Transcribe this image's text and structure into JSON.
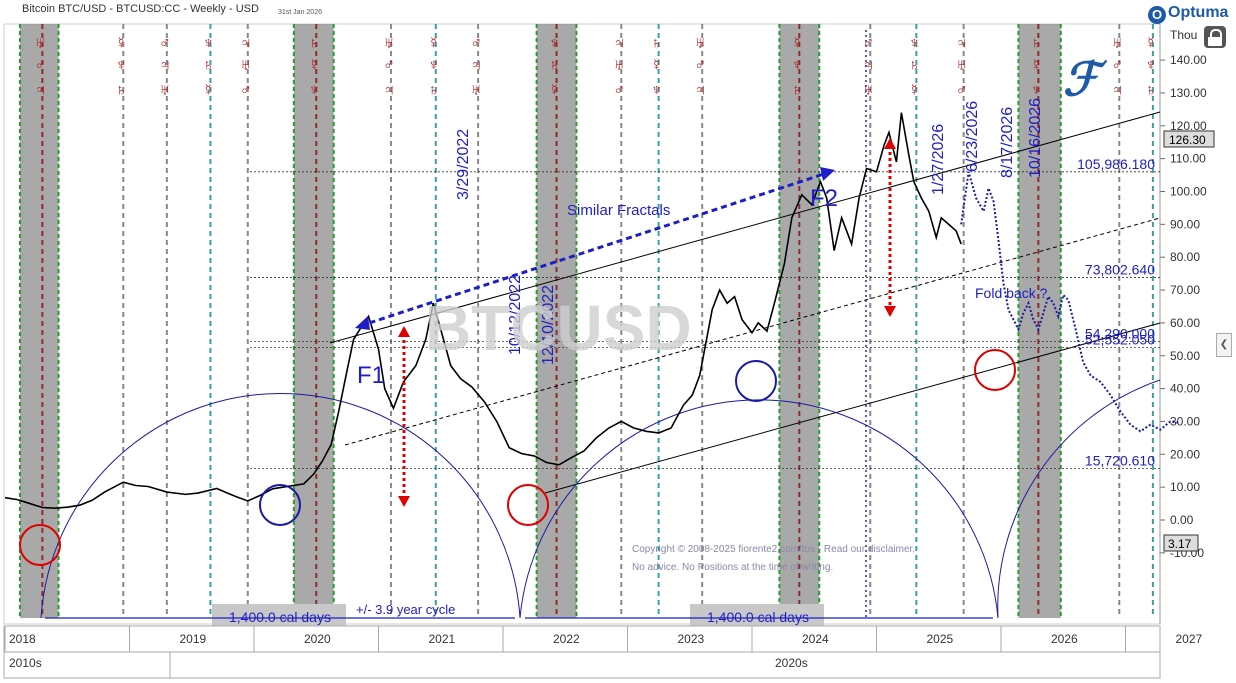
{
  "header": {
    "title": "Bitcoin BTC/USD - BTCUSD:CC - Weekly - USD",
    "date": "31st Jan 2026",
    "brand": "Optuma",
    "unit": "Thou"
  },
  "watermark": "BTCUSD",
  "copyright": [
    "Copyright © 2008-2025 fiorente2.com/tos - Read our disclaimer.",
    "No advice. No Positions at the time of writing."
  ],
  "chart_data": {
    "type": "line",
    "title": "Bitcoin BTC/USD - BTCUSD:CC - Weekly - USD",
    "ylabel": "Thou",
    "ylim": [
      -20,
      160
    ],
    "yticks": [
      "-10.00",
      "0.00",
      "10.00",
      "20.00",
      "30.00",
      "40.00",
      "50.00",
      "60.00",
      "70.00",
      "80.00",
      "90.00",
      "100.00",
      "110.00",
      "120.00",
      "130.00",
      "140.00",
      "150.00",
      "160.00"
    ],
    "year_labels": [
      "2018",
      "2019",
      "2020",
      "2021",
      "2022",
      "2023",
      "2024",
      "2025",
      "2026",
      "2027"
    ],
    "decade_labels": [
      "2010s",
      "2020s"
    ],
    "last_price": "126.30",
    "low_marker": "3.17",
    "series": [
      {
        "values": [
          [
            2018.0,
            6.8
          ],
          [
            2018.1,
            6.2
          ],
          [
            2018.2,
            5.0
          ],
          [
            2018.3,
            3.8
          ],
          [
            2018.4,
            3.6
          ],
          [
            2018.5,
            3.9
          ],
          [
            2018.6,
            4.5
          ],
          [
            2018.7,
            6.0
          ],
          [
            2018.8,
            8.5
          ],
          [
            2018.95,
            11.5
          ],
          [
            2019.05,
            10.5
          ],
          [
            2019.15,
            10.2
          ],
          [
            2019.3,
            8.5
          ],
          [
            2019.45,
            7.8
          ],
          [
            2019.55,
            8.2
          ],
          [
            2019.7,
            9.6
          ],
          [
            2019.85,
            7.2
          ],
          [
            2019.95,
            5.8
          ],
          [
            2020.05,
            7.5
          ],
          [
            2020.15,
            9.5
          ],
          [
            2020.3,
            10.4
          ],
          [
            2020.4,
            11.0
          ],
          [
            2020.48,
            14.0
          ],
          [
            2020.55,
            18.0
          ],
          [
            2020.62,
            23.0
          ],
          [
            2020.68,
            33.0
          ],
          [
            2020.75,
            46.0
          ],
          [
            2020.8,
            55.0
          ],
          [
            2020.85,
            58.0
          ],
          [
            2020.92,
            62.0
          ],
          [
            2021.0,
            52.0
          ],
          [
            2021.05,
            40.0
          ],
          [
            2021.12,
            34.0
          ],
          [
            2021.2,
            42.0
          ],
          [
            2021.3,
            47.0
          ],
          [
            2021.38,
            55.0
          ],
          [
            2021.44,
            66.0
          ],
          [
            2021.5,
            58.0
          ],
          [
            2021.58,
            47.0
          ],
          [
            2021.66,
            43.0
          ],
          [
            2021.75,
            40.5
          ],
          [
            2021.85,
            36.0
          ],
          [
            2021.95,
            30.0
          ],
          [
            2022.05,
            22.0
          ],
          [
            2022.15,
            20.2
          ],
          [
            2022.25,
            19.5
          ],
          [
            2022.35,
            17.5
          ],
          [
            2022.45,
            16.8
          ],
          [
            2022.55,
            19.0
          ],
          [
            2022.65,
            21.0
          ],
          [
            2022.75,
            25.0
          ],
          [
            2022.85,
            28.0
          ],
          [
            2022.95,
            30.0
          ],
          [
            2023.05,
            28.0
          ],
          [
            2023.15,
            27.0
          ],
          [
            2023.25,
            26.5
          ],
          [
            2023.35,
            28.0
          ],
          [
            2023.45,
            35.0
          ],
          [
            2023.52,
            38.0
          ],
          [
            2023.58,
            44.0
          ],
          [
            2023.62,
            52.0
          ],
          [
            2023.68,
            64.0
          ],
          [
            2023.74,
            70.0
          ],
          [
            2023.8,
            66.0
          ],
          [
            2023.86,
            68.0
          ],
          [
            2023.92,
            61.0
          ],
          [
            2024.0,
            57.0
          ],
          [
            2024.05,
            60.0
          ],
          [
            2024.12,
            57.5
          ],
          [
            2024.18,
            66.0
          ],
          [
            2024.22,
            72.0
          ],
          [
            2024.26,
            78.0
          ],
          [
            2024.32,
            92.0
          ],
          [
            2024.4,
            99.0
          ],
          [
            2024.48,
            96.0
          ],
          [
            2024.55,
            103.0
          ],
          [
            2024.6,
            98.0
          ],
          [
            2024.66,
            82.0
          ],
          [
            2024.72,
            92.0
          ],
          [
            2024.8,
            84.0
          ],
          [
            2024.86,
            98.0
          ],
          [
            2024.92,
            107.0
          ],
          [
            2025.0,
            106.0
          ],
          [
            2025.06,
            114.0
          ],
          [
            2025.1,
            118.0
          ],
          [
            2025.16,
            109.0
          ],
          [
            2025.2,
            124.0
          ],
          [
            2025.26,
            111.0
          ],
          [
            2025.3,
            103.0
          ],
          [
            2025.36,
            98.0
          ],
          [
            2025.42,
            94.0
          ],
          [
            2025.48,
            86.0
          ],
          [
            2025.52,
            92.0
          ],
          [
            2025.58,
            90.0
          ],
          [
            2025.64,
            88.0
          ],
          [
            2025.68,
            84.0
          ]
        ]
      },
      {
        "values": [
          [
            2025.68,
            90.0
          ],
          [
            2025.74,
            106.0
          ],
          [
            2025.8,
            98.0
          ],
          [
            2025.86,
            94.0
          ],
          [
            2025.9,
            101.0
          ],
          [
            2025.94,
            97.0
          ],
          [
            2025.98,
            85.0
          ],
          [
            2026.02,
            72.0
          ],
          [
            2026.06,
            64.0
          ],
          [
            2026.1,
            61.0
          ],
          [
            2026.14,
            58.0
          ],
          [
            2026.18,
            63.0
          ],
          [
            2026.22,
            66.0
          ],
          [
            2026.26,
            61.0
          ],
          [
            2026.3,
            58.0
          ],
          [
            2026.34,
            63.0
          ],
          [
            2026.38,
            68.0
          ],
          [
            2026.42,
            66.0
          ],
          [
            2026.46,
            62.0
          ],
          [
            2026.5,
            68.5
          ],
          [
            2026.54,
            67.0
          ],
          [
            2026.6,
            58.0
          ],
          [
            2026.66,
            48.0
          ],
          [
            2026.72,
            44.0
          ],
          [
            2026.8,
            42.0
          ],
          [
            2026.88,
            38.0
          ],
          [
            2026.96,
            33.0
          ],
          [
            2027.04,
            29.0
          ],
          [
            2027.12,
            27.0
          ],
          [
            2027.2,
            29.0
          ],
          [
            2027.28,
            27.5
          ],
          [
            2027.36,
            30.0
          ],
          [
            2027.44,
            29.5
          ]
        ]
      }
    ],
    "annotations": [
      {
        "text": "Similar Fractals"
      },
      {
        "text": "F1"
      },
      {
        "text": "F2"
      },
      {
        "text": "Fold back ?"
      },
      {
        "text": "+/- 3.9 year cycle"
      },
      {
        "text": "1,400.0 cal days"
      },
      {
        "text": "1,400.0 cal days"
      }
    ],
    "level_lines": [
      {
        "value": 105.98618,
        "label": "105,986.180"
      },
      {
        "value": 73.80264,
        "label": "73,802.640"
      },
      {
        "value": 54.29,
        "label": "54,290.000"
      },
      {
        "value": 52.55205,
        "label": "52,552.050"
      },
      {
        "value": 15.72061,
        "label": "15,720.610"
      }
    ],
    "date_labels": [
      "3/29/2022",
      "10/12/2022",
      "12/10/2022",
      "1/27/2026",
      "6/23/2026",
      "8/17/2026",
      "10/16/2026"
    ],
    "colors": {
      "price": "#000000",
      "projection": "#1a1aa8",
      "accent": "#1e1ec8",
      "arrow_red": "#e00000",
      "circle_red": "#e00000",
      "gray_band": "#8c8c8c",
      "planet": "#b01818"
    }
  }
}
